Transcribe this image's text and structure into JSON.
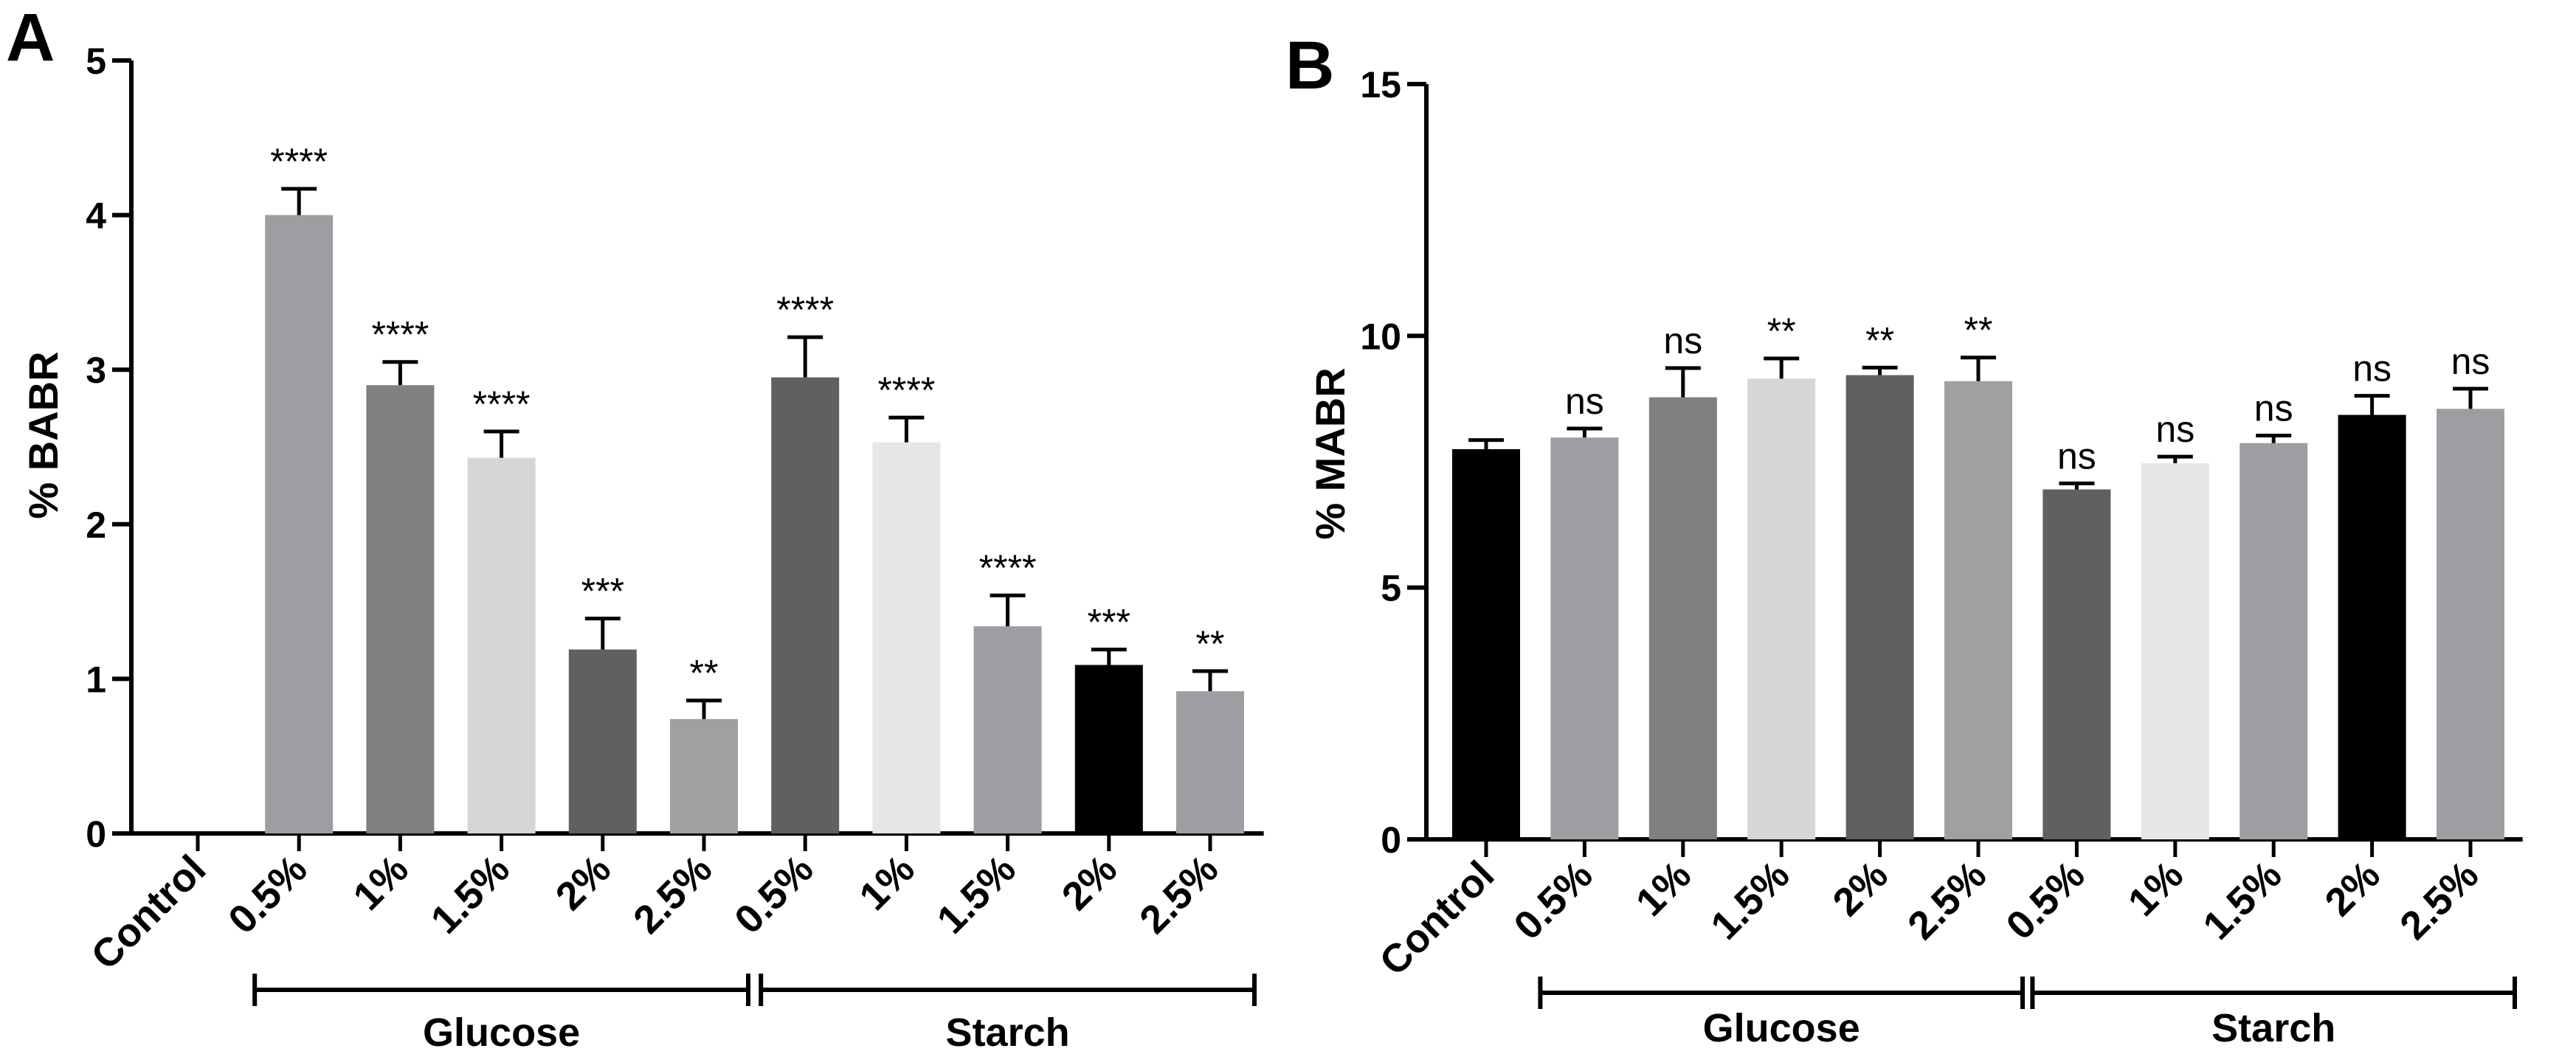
{
  "chart_data": [
    {
      "type": "bar",
      "panel": "A",
      "ylabel": "% BABR",
      "ylim": [
        0,
        5
      ],
      "yticks": [
        0,
        1,
        2,
        3,
        4,
        5
      ],
      "categories": [
        "Control",
        "0.5%",
        "1%",
        "1.5%",
        "2%",
        "2.5%",
        "0.5%",
        "1%",
        "1.5%",
        "2%",
        "2.5%"
      ],
      "values": [
        0,
        4.0,
        2.9,
        2.43,
        1.19,
        0.74,
        2.95,
        2.53,
        1.34,
        1.09,
        0.92
      ],
      "errors": [
        0,
        0.17,
        0.15,
        0.17,
        0.2,
        0.12,
        0.26,
        0.16,
        0.2,
        0.1,
        0.13
      ],
      "significance": [
        "",
        "****",
        "****",
        "****",
        "***",
        "**",
        "****",
        "****",
        "****",
        "***",
        "**"
      ],
      "colors": [
        "#000000",
        "#9e9ea2",
        "#808080",
        "#d6d6d6",
        "#606060",
        "#a0a0a3",
        "#606060",
        "#e6e6e6",
        "#9e9ea2",
        "#000000",
        "#9e9ea2"
      ],
      "groups": [
        {
          "label": "Glucose",
          "from": 1,
          "to": 5
        },
        {
          "label": "Starch",
          "from": 6,
          "to": 10
        }
      ]
    },
    {
      "type": "bar",
      "panel": "B",
      "ylabel": "% MABR",
      "ylim": [
        0,
        15
      ],
      "yticks": [
        0,
        5,
        10,
        15
      ],
      "categories": [
        "Control",
        "0.5%",
        "1%",
        "1.5%",
        "2%",
        "2.5%",
        "0.5%",
        "1%",
        "1.5%",
        "2%",
        "2.5%"
      ],
      "values": [
        7.75,
        7.98,
        8.78,
        9.15,
        9.22,
        9.1,
        6.95,
        7.47,
        7.87,
        8.43,
        8.55
      ],
      "errors": [
        0.18,
        0.18,
        0.58,
        0.4,
        0.15,
        0.47,
        0.12,
        0.13,
        0.15,
        0.38,
        0.4
      ],
      "significance": [
        "",
        "ns",
        "ns",
        "**",
        "**",
        "**",
        "ns",
        "ns",
        "ns",
        "ns",
        "ns"
      ],
      "colors": [
        "#000000",
        "#9e9ea2",
        "#808080",
        "#d6d6d6",
        "#606060",
        "#a0a0a3",
        "#606060",
        "#e6e6e6",
        "#9e9ea2",
        "#000000",
        "#9e9ea2"
      ],
      "groups": [
        {
          "label": "Glucose",
          "from": 1,
          "to": 5
        },
        {
          "label": "Starch",
          "from": 6,
          "to": 10
        }
      ]
    }
  ]
}
